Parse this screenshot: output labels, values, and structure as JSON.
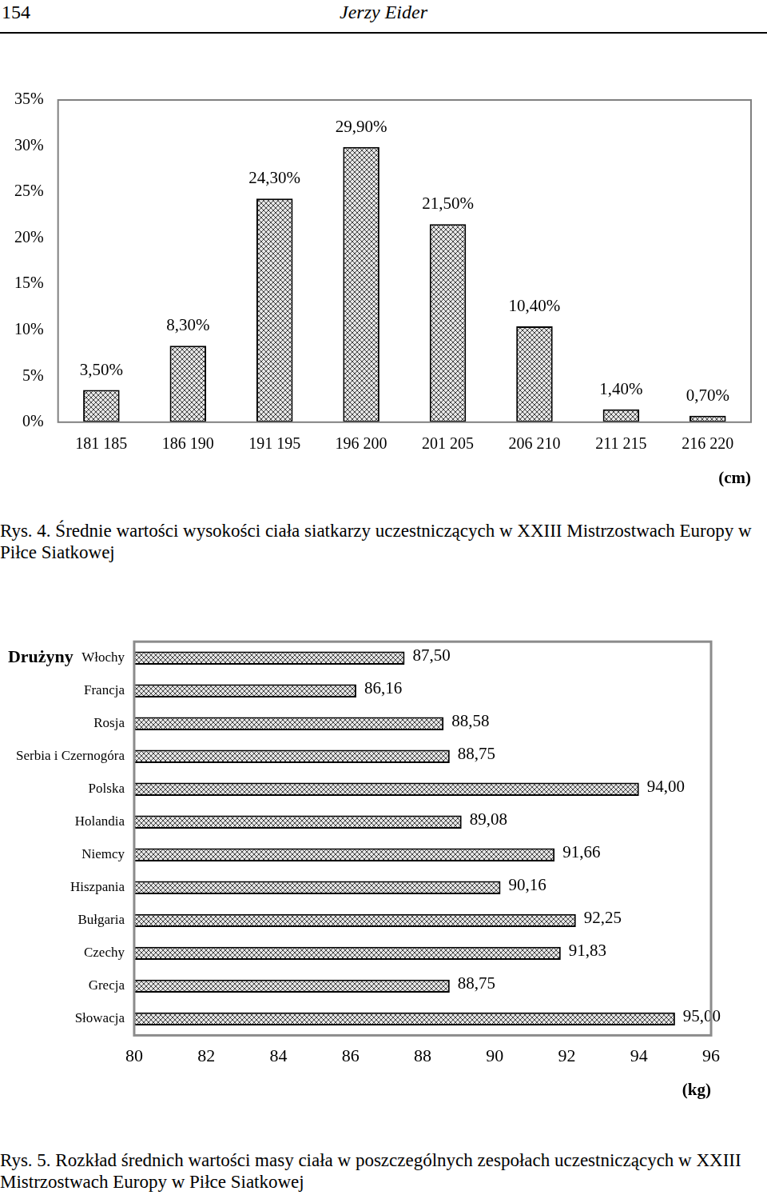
{
  "header": {
    "page_number": "154",
    "author": "Jerzy Eider"
  },
  "chart_data": [
    {
      "type": "bar",
      "title": "Rys. 4. Średnie wartości wysokości ciała siatkarzy uczestniczących w XXIII Mistrzostwach Europy w Piłce Siatkowej",
      "x_label": "(cm)",
      "categories": [
        "181 185",
        "186 190",
        "191 195",
        "196 200",
        "201 205",
        "206 210",
        "211 215",
        "216 220"
      ],
      "values": [
        3.5,
        8.3,
        24.3,
        29.9,
        21.5,
        10.4,
        1.4,
        0.7
      ],
      "value_labels": [
        "3,50%",
        "8,30%",
        "24,30%",
        "29,90%",
        "21,50%",
        "10,40%",
        "1,40%",
        "0,70%"
      ],
      "ylim": [
        0,
        35
      ],
      "yticks": [
        {
          "value": 0,
          "label": "0%"
        },
        {
          "value": 5,
          "label": "5%"
        },
        {
          "value": 10,
          "label": "10%"
        },
        {
          "value": 15,
          "label": "15%"
        },
        {
          "value": 20,
          "label": "20%"
        },
        {
          "value": 25,
          "label": "25%"
        },
        {
          "value": 30,
          "label": "30%"
        },
        {
          "value": 35,
          "label": "35%"
        }
      ],
      "grid": false,
      "data_labels": true,
      "color": "#e6e6e6"
    },
    {
      "type": "bar",
      "orientation": "horizontal",
      "title": "Rys. 5. Rozkład średnich wartości masy ciała w poszczególnych zespołach uczestniczących w XXIII Mistrzostwach Europy w Piłce Siatkowej",
      "y_label": "Drużyny",
      "x_label": "(kg)",
      "categories": [
        "Włochy",
        "Francja",
        "Rosja",
        "Serbia i Czernogóra",
        "Polska",
        "Holandia",
        "Niemcy",
        "Hiszpania",
        "Bułgaria",
        "Czechy",
        "Grecja",
        "Słowacja"
      ],
      "values": [
        87.5,
        86.16,
        88.58,
        88.75,
        94.0,
        89.08,
        91.66,
        90.16,
        92.25,
        91.83,
        88.75,
        95.0
      ],
      "value_labels": [
        "87,50",
        "86,16",
        "88,58",
        "88,75",
        "94,00",
        "89,08",
        "91,66",
        "90,16",
        "92,25",
        "91,83",
        "88,75",
        "95,00"
      ],
      "xlim": [
        80,
        96
      ],
      "xticks": [
        80,
        82,
        84,
        86,
        88,
        90,
        92,
        94,
        96
      ],
      "grid": false,
      "data_labels": true,
      "color": "#e6e6e6"
    }
  ]
}
